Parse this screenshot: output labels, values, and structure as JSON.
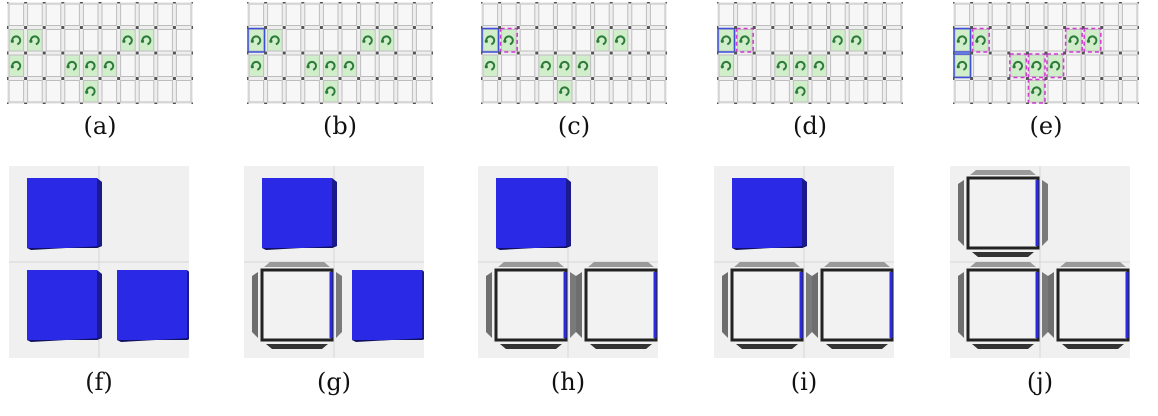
{
  "figure": {
    "panels_top": [
      {
        "label": "(a)",
        "rows": [
          [
            0,
            0,
            0,
            0,
            0,
            0,
            0,
            0,
            0,
            0
          ],
          [
            1,
            1,
            0,
            0,
            0,
            0,
            1,
            1,
            0,
            0
          ],
          [
            1,
            0,
            0,
            1,
            1,
            1,
            0,
            0,
            0,
            0
          ],
          [
            0,
            0,
            0,
            0,
            1,
            0,
            0,
            0,
            0,
            0
          ]
        ]
      },
      {
        "label": "(b)",
        "rows": [
          [
            0,
            0,
            0,
            0,
            0,
            0,
            0,
            0,
            0,
            0
          ],
          [
            2,
            1,
            0,
            0,
            0,
            0,
            1,
            1,
            0,
            0
          ],
          [
            1,
            0,
            0,
            1,
            1,
            1,
            0,
            0,
            0,
            0
          ],
          [
            0,
            0,
            0,
            0,
            1,
            0,
            0,
            0,
            0,
            0
          ]
        ]
      },
      {
        "label": "(c)",
        "rows": [
          [
            0,
            0,
            0,
            0,
            0,
            0,
            0,
            0,
            0,
            0
          ],
          [
            2,
            3,
            0,
            0,
            0,
            0,
            1,
            1,
            0,
            0
          ],
          [
            1,
            0,
            0,
            1,
            1,
            1,
            0,
            0,
            0,
            0
          ],
          [
            0,
            0,
            0,
            0,
            1,
            0,
            0,
            0,
            0,
            0
          ]
        ]
      },
      {
        "label": "(d)",
        "rows": [
          [
            0,
            0,
            0,
            0,
            0,
            0,
            0,
            0,
            0,
            0
          ],
          [
            2,
            3,
            0,
            0,
            0,
            0,
            1,
            1,
            0,
            0
          ],
          [
            1,
            0,
            0,
            1,
            1,
            1,
            0,
            0,
            0,
            0
          ],
          [
            0,
            0,
            0,
            0,
            1,
            0,
            0,
            0,
            0,
            0
          ]
        ]
      },
      {
        "label": "(e)",
        "rows": [
          [
            0,
            0,
            0,
            0,
            0,
            0,
            0,
            0,
            0,
            0
          ],
          [
            2,
            3,
            0,
            0,
            0,
            0,
            3,
            3,
            0,
            0
          ],
          [
            2,
            0,
            0,
            3,
            3,
            3,
            0,
            0,
            0,
            0
          ],
          [
            0,
            0,
            0,
            0,
            3,
            0,
            0,
            0,
            0,
            0
          ]
        ]
      }
    ],
    "panels_bottom": [
      {
        "label": "(f)",
        "cells": [
          "solid",
          "empty",
          "solid",
          "solid"
        ]
      },
      {
        "label": "(g)",
        "cells": [
          "solid",
          "empty",
          "hollow",
          "solid"
        ]
      },
      {
        "label": "(h)",
        "cells": [
          "solid",
          "empty",
          "hollow",
          "hollow"
        ]
      },
      {
        "label": "(i)",
        "cells": [
          "solid",
          "empty",
          "hollow",
          "hollow"
        ]
      },
      {
        "label": "(j)",
        "cells": [
          "hollow",
          "empty",
          "hollow",
          "hollow"
        ]
      }
    ],
    "colors": {
      "cube_blue": "#2a2ae6",
      "green_cell": "#cfeec9",
      "grid_gray": "#d9d9d9",
      "background_gray": "#f0f0f0",
      "marker_blue": "#3a50d8",
      "marker_magenta": "#d23ad2"
    }
  }
}
